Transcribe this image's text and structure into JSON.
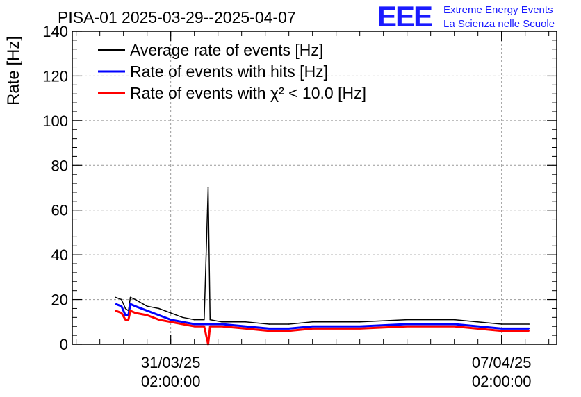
{
  "header": {
    "title": "PISA-01 2025-03-29--2025-04-07",
    "logo_text": "EEE",
    "org_line1": "Extreme Energy Events",
    "org_line2": "La Scienza nelle Scuole"
  },
  "colors": {
    "average": "#000000",
    "hits": "#0000ff",
    "chi2": "#ff0000",
    "logo": "#1a1aff"
  },
  "chart_data": {
    "type": "line",
    "ylabel": "Rate [Hz]",
    "ylim": [
      0,
      140
    ],
    "yticks": [
      "0",
      "20",
      "40",
      "60",
      "80",
      "100",
      "120",
      "140"
    ],
    "xlim": [
      "2025-03-29T00:00:00",
      "2025-04-08T06:00:00"
    ],
    "xticks": [
      {
        "date": "31/03/25",
        "time": "02:00:00",
        "x": "2025-03-31T02:00:00"
      },
      {
        "date": "07/04/25",
        "time": "02:00:00",
        "x": "2025-04-07T02:00:00"
      }
    ],
    "grid": true,
    "legend_position": "top-left",
    "series": [
      {
        "name": "Average rate of events [Hz]",
        "color": "black",
        "points": [
          [
            "2025-03-29T22:00:00",
            21
          ],
          [
            "2025-03-30T01:00:00",
            20
          ],
          [
            "2025-03-30T03:00:00",
            16
          ],
          [
            "2025-03-30T04:30:00",
            15
          ],
          [
            "2025-03-30T05:30:00",
            21
          ],
          [
            "2025-03-30T08:00:00",
            20
          ],
          [
            "2025-03-30T14:00:00",
            17
          ],
          [
            "2025-03-30T20:00:00",
            16
          ],
          [
            "2025-03-31T02:00:00",
            14
          ],
          [
            "2025-03-31T08:00:00",
            12
          ],
          [
            "2025-03-31T14:00:00",
            11
          ],
          [
            "2025-03-31T19:00:00",
            11
          ],
          [
            "2025-03-31T21:00:00",
            70
          ],
          [
            "2025-03-31T22:00:00",
            11
          ],
          [
            "2025-04-01T04:00:00",
            10
          ],
          [
            "2025-04-01T16:00:00",
            10
          ],
          [
            "2025-04-02T04:00:00",
            9
          ],
          [
            "2025-04-02T14:00:00",
            9
          ],
          [
            "2025-04-03T02:00:00",
            10
          ],
          [
            "2025-04-04T02:00:00",
            10
          ],
          [
            "2025-04-05T02:00:00",
            11
          ],
          [
            "2025-04-06T02:00:00",
            11
          ],
          [
            "2025-04-07T02:00:00",
            9
          ],
          [
            "2025-04-07T16:00:00",
            9
          ]
        ]
      },
      {
        "name": "Rate of events with hits [Hz]",
        "color": "blue",
        "points": [
          [
            "2025-03-29T22:00:00",
            18
          ],
          [
            "2025-03-30T01:00:00",
            17
          ],
          [
            "2025-03-30T03:00:00",
            13
          ],
          [
            "2025-03-30T04:30:00",
            13
          ],
          [
            "2025-03-30T05:30:00",
            18
          ],
          [
            "2025-03-30T08:00:00",
            17
          ],
          [
            "2025-03-30T14:00:00",
            15
          ],
          [
            "2025-03-30T20:00:00",
            13
          ],
          [
            "2025-03-31T02:00:00",
            11
          ],
          [
            "2025-03-31T08:00:00",
            10
          ],
          [
            "2025-03-31T14:00:00",
            9
          ],
          [
            "2025-03-31T19:00:00",
            9
          ],
          [
            "2025-03-31T21:00:00",
            9
          ],
          [
            "2025-03-31T22:00:00",
            9
          ],
          [
            "2025-04-01T04:00:00",
            9
          ],
          [
            "2025-04-01T16:00:00",
            8
          ],
          [
            "2025-04-02T04:00:00",
            7
          ],
          [
            "2025-04-02T14:00:00",
            7
          ],
          [
            "2025-04-03T02:00:00",
            8
          ],
          [
            "2025-04-04T02:00:00",
            8
          ],
          [
            "2025-04-05T02:00:00",
            9
          ],
          [
            "2025-04-06T02:00:00",
            9
          ],
          [
            "2025-04-07T02:00:00",
            7
          ],
          [
            "2025-04-07T16:00:00",
            7
          ]
        ]
      },
      {
        "name": "Rate of events with χ² < 10.0 [Hz]",
        "color": "red",
        "points": [
          [
            "2025-03-29T22:00:00",
            15
          ],
          [
            "2025-03-30T01:00:00",
            14
          ],
          [
            "2025-03-30T03:00:00",
            11
          ],
          [
            "2025-03-30T04:30:00",
            11
          ],
          [
            "2025-03-30T05:30:00",
            15
          ],
          [
            "2025-03-30T08:00:00",
            14
          ],
          [
            "2025-03-30T14:00:00",
            13
          ],
          [
            "2025-03-30T20:00:00",
            11
          ],
          [
            "2025-03-31T02:00:00",
            10
          ],
          [
            "2025-03-31T08:00:00",
            9
          ],
          [
            "2025-03-31T14:00:00",
            8
          ],
          [
            "2025-03-31T19:00:00",
            8
          ],
          [
            "2025-03-31T21:00:00",
            0
          ],
          [
            "2025-03-31T22:00:00",
            8
          ],
          [
            "2025-04-01T04:00:00",
            8
          ],
          [
            "2025-04-01T16:00:00",
            7
          ],
          [
            "2025-04-02T04:00:00",
            6
          ],
          [
            "2025-04-02T14:00:00",
            6
          ],
          [
            "2025-04-03T02:00:00",
            7
          ],
          [
            "2025-04-04T02:00:00",
            7
          ],
          [
            "2025-04-05T02:00:00",
            8
          ],
          [
            "2025-04-06T02:00:00",
            8
          ],
          [
            "2025-04-07T02:00:00",
            6
          ],
          [
            "2025-04-07T16:00:00",
            6
          ]
        ]
      }
    ]
  }
}
